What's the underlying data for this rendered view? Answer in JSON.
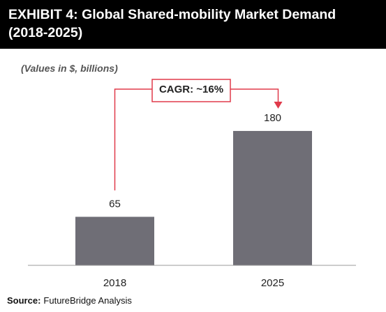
{
  "chart_data": {
    "type": "bar",
    "title": "EXHIBIT 4: Global Shared-mobility Market Demand (2018-2025)",
    "subtitle": "(Values in $, billions)",
    "categories": [
      "2018",
      "2025"
    ],
    "values": [
      65,
      180
    ],
    "color": "#6f6e76",
    "ylim": [
      0,
      200
    ],
    "annotation": "CAGR: ~16%",
    "annotation_color": "#e03a4a",
    "source_label": "Source:",
    "source": "FutureBridge Analysis"
  }
}
